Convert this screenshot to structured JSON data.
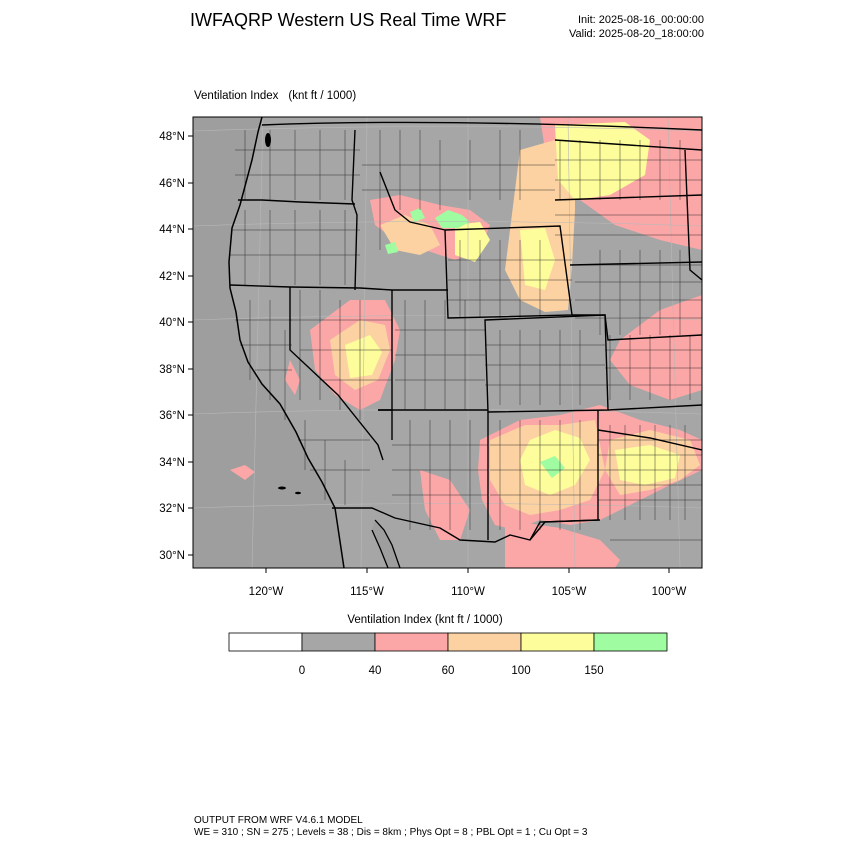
{
  "header": {
    "title": "IWFAQRP Western US Real Time WRF",
    "init": "Init: 2025-08-16_00:00:00",
    "valid": "Valid: 2025-08-20_18:00:00"
  },
  "field": {
    "name": "Ventilation Index",
    "units": "(knt ft / 1000)"
  },
  "map": {
    "lat_labels": [
      "48°N",
      "46°N",
      "44°N",
      "42°N",
      "40°N",
      "38°N",
      "36°N",
      "34°N",
      "32°N",
      "30°N"
    ],
    "lon_labels": [
      "120°W",
      "115°W",
      "110°W",
      "105°W",
      "100°W"
    ],
    "colors": {
      "ocean": "#9e9e9e",
      "land_low": "#a6a6a6",
      "pink": "#fca7a7",
      "peach": "#fcd2a2",
      "yellow": "#fdfd9c",
      "green": "#a0fca0",
      "border": "#000000"
    }
  },
  "colorbar": {
    "title": "Ventilation Index   (knt ft / 1000)",
    "ticks": [
      "0",
      "40",
      "60",
      "100",
      "150"
    ],
    "colors": [
      "#ffffff",
      "#a6a6a6",
      "#fca7a7",
      "#fcd2a2",
      "#fdfd9c",
      "#a0fca0"
    ]
  },
  "footer": {
    "line1": "OUTPUT FROM WRF V4.6.1 MODEL",
    "line2": "WE = 310 ; SN = 275 ; Levels = 38 ; Dis = 8km ; Phys Opt = 8 ; PBL Opt = 1 ; Cu Opt = 3"
  }
}
